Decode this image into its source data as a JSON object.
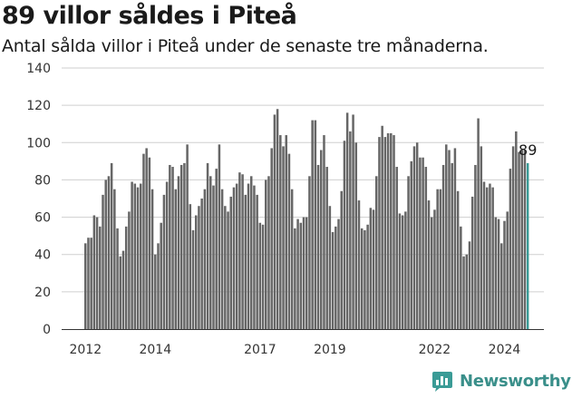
{
  "chart_data": {
    "type": "bar",
    "title": "89 villor såldes i Piteå",
    "subtitle": "Antal sålda villor i Piteå under de senaste tre månaderna.",
    "ylim": [
      0,
      140
    ],
    "yticks": [
      0,
      20,
      40,
      60,
      80,
      100,
      120,
      140
    ],
    "x_start_year": 2012,
    "x_tick_labels": [
      "2012",
      "2014",
      "2017",
      "2019",
      "2022",
      "2024"
    ],
    "x_tick_years": [
      2012,
      2014,
      2017,
      2019,
      2022,
      2024
    ],
    "grid": "horizontal",
    "values": [
      46,
      49,
      49,
      61,
      60,
      55,
      72,
      80,
      82,
      89,
      75,
      54,
      39,
      42,
      55,
      63,
      79,
      78,
      76,
      78,
      94,
      97,
      92,
      75,
      40,
      46,
      57,
      72,
      79,
      88,
      87,
      75,
      82,
      88,
      89,
      99,
      67,
      53,
      61,
      66,
      70,
      75,
      89,
      82,
      77,
      86,
      99,
      75,
      66,
      63,
      71,
      76,
      78,
      84,
      83,
      72,
      78,
      82,
      77,
      72,
      57,
      56,
      80,
      82,
      97,
      115,
      118,
      104,
      98,
      104,
      94,
      75,
      54,
      59,
      57,
      60,
      60,
      82,
      112,
      112,
      88,
      96,
      104,
      87,
      66,
      52,
      55,
      59,
      74,
      101,
      116,
      106,
      115,
      100,
      69,
      54,
      53,
      56,
      65,
      64,
      82,
      103,
      109,
      103,
      105,
      105,
      104,
      87,
      62,
      61,
      63,
      82,
      90,
      98,
      100,
      92,
      92,
      87,
      69,
      60,
      64,
      75,
      75,
      88,
      99,
      96,
      89,
      97,
      74,
      55,
      39,
      40,
      47,
      71,
      88,
      113,
      98,
      79,
      76,
      78,
      76,
      60,
      59,
      46,
      58,
      63,
      86,
      98,
      106,
      95,
      96,
      96,
      89
    ],
    "last_value_label": "89",
    "colors": {
      "bar": "#666666",
      "highlight": "#3a9b96",
      "grid": "#cfcfcf",
      "axis": "#333333"
    }
  },
  "branding": {
    "logo_text": "Newsworthy",
    "logo_icon": "chart-bars-icon"
  }
}
